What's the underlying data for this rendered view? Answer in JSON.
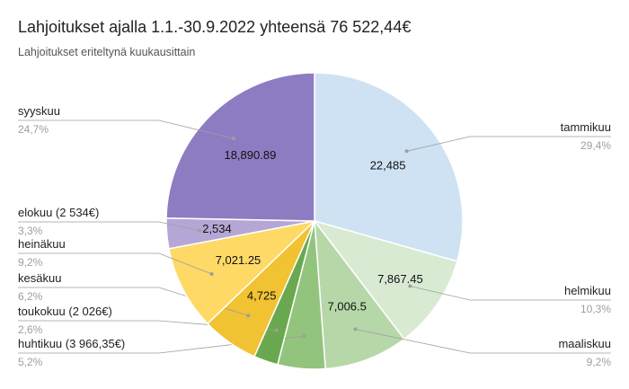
{
  "chart_data": {
    "type": "pie",
    "title": "Lahjoitukset ajalla 1.1.-30.9.2022 yhteensä 76 522,44€",
    "subtitle": "Lahjoitukset eriteltynä kuukausittain",
    "slices": [
      {
        "label": "tammikuu",
        "value": 22485,
        "value_label": "22,485",
        "percent_label": "29,4%",
        "color": "#cfe2f3"
      },
      {
        "label": "helmikuu",
        "value": 7867.45,
        "value_label": "7,867.45",
        "percent_label": "10,3%",
        "color": "#d9ead3"
      },
      {
        "label": "maaliskuu",
        "value": 7006.5,
        "value_label": "7,006.5",
        "percent_label": "9,2%",
        "color": "#b6d7a8"
      },
      {
        "label": "huhtikuu (3 966,35€)",
        "value": 3966.35,
        "value_label": "",
        "percent_label": "5,2%",
        "color": "#93c47d"
      },
      {
        "label": "toukokuu (2 026€)",
        "value": 2026,
        "value_label": "",
        "percent_label": "2,6%",
        "color": "#6aa84f"
      },
      {
        "label": "kesäkuu",
        "value": 4725,
        "value_label": "4,725",
        "percent_label": "6,2%",
        "color": "#f1c232"
      },
      {
        "label": "heinäkuu",
        "value": 7021.25,
        "value_label": "7,021.25",
        "percent_label": "9,2%",
        "color": "#ffd966"
      },
      {
        "label": "elokuu (2 534€)",
        "value": 2534,
        "value_label": "2,534",
        "percent_label": "3,3%",
        "color": "#b4a7d6"
      },
      {
        "label": "syyskuu",
        "value": 18890.89,
        "value_label": "18,890.89",
        "percent_label": "24,7%",
        "color": "#8e7cc3"
      }
    ],
    "legend": "outside-labels"
  }
}
